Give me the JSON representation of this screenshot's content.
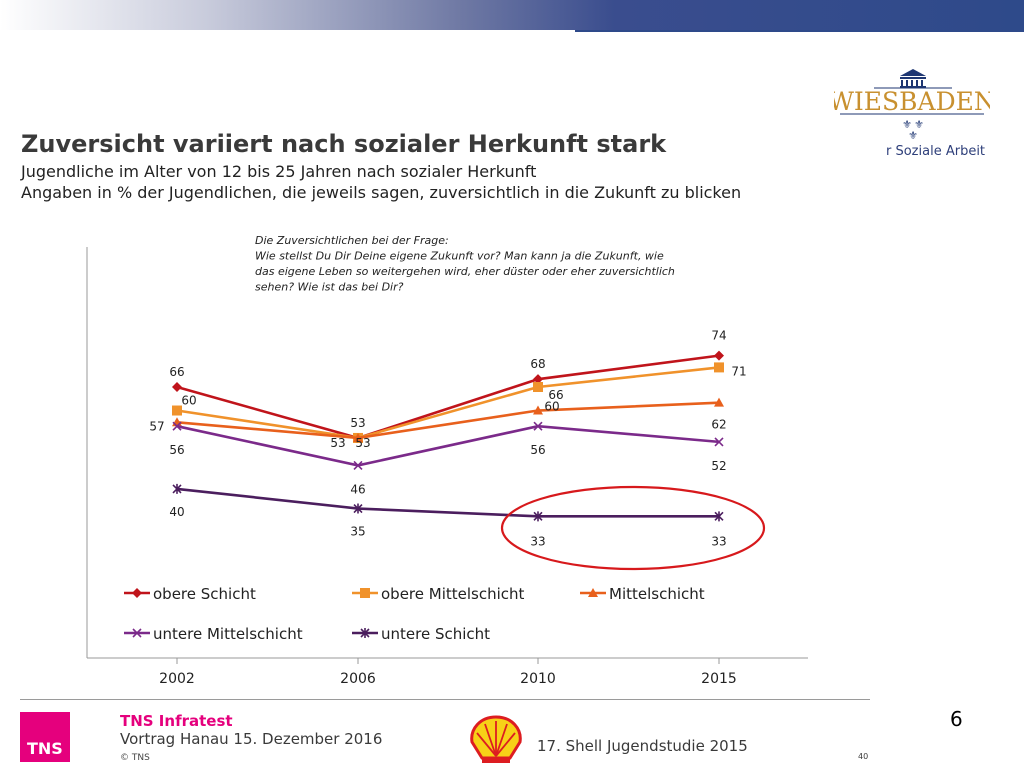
{
  "slide": {
    "title": "Zuversicht variiert nach sozialer Herkunft stark",
    "subtitle1": "Jugendliche im Alter von 12 bis 25 Jahren nach sozialer Herkunft",
    "subtitle2": "Angaben in % der Jugendlichen, die jeweils sagen, zuversichtlich in die Zukunft zu blicken",
    "slide_number": "6"
  },
  "logo": {
    "wiesbaden": "WIESBADEN",
    "department": "r Soziale Arbeit"
  },
  "footer": {
    "tns_box": "TNS",
    "tns_name": "TNS Infratest",
    "talk": "Vortrag Hanau 15. Dezember 2016",
    "copyright": "© TNS",
    "study": "17. Shell Jugendstudie 2015",
    "page": "40"
  },
  "colors": {
    "obere_schicht": "#c0141b",
    "obere_mittelschicht": "#f0922b",
    "mittelschicht": "#e8601c",
    "untere_mittelschicht": "#7b2a8a",
    "untere_schicht": "#4b1e5e",
    "highlight_circle": "#d7191c"
  },
  "chart_data": {
    "type": "line",
    "annotation": [
      "Die Zuversichtlichen bei der Frage:",
      "Wie stellst Du Dir Deine eigene Zukunft vor? Man kann ja die Zukunft, wie",
      "das eigene Leben so weitergehen wird, eher düster oder eher zuversichtlich",
      "sehen? Wie ist das bei Dir?"
    ],
    "x": [
      "2002",
      "2006",
      "2010",
      "2015"
    ],
    "series": [
      {
        "name": "obere Schicht",
        "values": [
          66,
          53,
          68,
          74
        ],
        "marker": "diamond",
        "labels": [
          "66",
          "53",
          "68",
          "74"
        ]
      },
      {
        "name": "obere Mittelschicht",
        "values": [
          60,
          53,
          66,
          71
        ],
        "marker": "square",
        "labels": [
          "60",
          "53",
          "66",
          "71"
        ]
      },
      {
        "name": "Mittelschicht",
        "values": [
          57,
          53,
          60,
          62
        ],
        "marker": "triangle",
        "labels": [
          "57",
          "53",
          "60",
          "62"
        ]
      },
      {
        "name": "untere Mittelschicht",
        "values": [
          56,
          46,
          56,
          52
        ],
        "marker": "x",
        "labels": [
          "56",
          "46",
          "56",
          "52"
        ]
      },
      {
        "name": "untere Schicht",
        "values": [
          40,
          35,
          33,
          33
        ],
        "marker": "star",
        "labels": [
          "40",
          "35",
          "33",
          "33"
        ]
      }
    ],
    "legend_position": "bottom",
    "grid": false,
    "highlight": "untere Schicht 2010–2015"
  }
}
